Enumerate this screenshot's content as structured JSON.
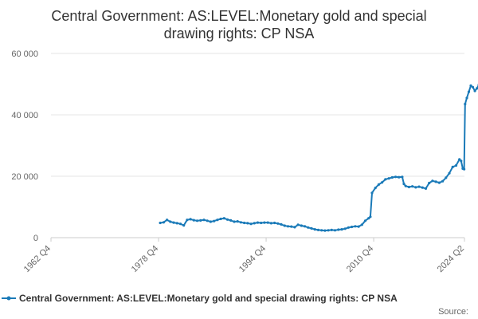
{
  "chart_data": {
    "type": "line",
    "title_line1": "Central Government: AS:LEVEL:Monetary gold and special",
    "title_line2": "drawing rights: CP NSA",
    "ylim": [
      0,
      60000
    ],
    "yticks": [
      {
        "value": 0,
        "label": "0"
      },
      {
        "value": 20000,
        "label": "20 000"
      },
      {
        "value": 40000,
        "label": "40 000"
      },
      {
        "value": 60000,
        "label": "60 000"
      }
    ],
    "xlim": [
      1962.75,
      2024.25
    ],
    "xticks": [
      {
        "value": 1962.75,
        "label": "1962 Q4"
      },
      {
        "value": 1978.75,
        "label": "1978 Q4"
      },
      {
        "value": 1994.75,
        "label": "1994 Q4"
      },
      {
        "value": 2010.75,
        "label": "2010 Q4"
      },
      {
        "value": 2024.25,
        "label": "2024 Q2"
      }
    ],
    "series": [
      {
        "name": "Central Government: AS:LEVEL:Monetary gold and special drawing rights: CP NSA",
        "color": "#1a7ab8",
        "points": [
          [
            1979.0,
            4800
          ],
          [
            1979.5,
            5000
          ],
          [
            1980.0,
            5800
          ],
          [
            1980.5,
            5200
          ],
          [
            1981.0,
            4900
          ],
          [
            1981.5,
            4700
          ],
          [
            1982.0,
            4500
          ],
          [
            1982.5,
            4000
          ],
          [
            1983.0,
            5800
          ],
          [
            1983.5,
            6000
          ],
          [
            1984.0,
            5700
          ],
          [
            1984.5,
            5500
          ],
          [
            1985.0,
            5600
          ],
          [
            1985.5,
            5800
          ],
          [
            1986.0,
            5500
          ],
          [
            1986.5,
            5200
          ],
          [
            1987.0,
            5400
          ],
          [
            1987.5,
            5800
          ],
          [
            1988.0,
            6100
          ],
          [
            1988.5,
            6300
          ],
          [
            1989.0,
            5900
          ],
          [
            1989.5,
            5600
          ],
          [
            1990.0,
            5200
          ],
          [
            1990.5,
            5300
          ],
          [
            1991.0,
            5000
          ],
          [
            1991.5,
            4800
          ],
          [
            1992.0,
            4700
          ],
          [
            1992.5,
            4500
          ],
          [
            1993.0,
            4700
          ],
          [
            1993.5,
            4900
          ],
          [
            1994.0,
            4800
          ],
          [
            1994.5,
            4900
          ],
          [
            1995.0,
            4900
          ],
          [
            1995.5,
            4700
          ],
          [
            1996.0,
            4800
          ],
          [
            1996.5,
            4600
          ],
          [
            1997.0,
            4300
          ],
          [
            1997.5,
            3900
          ],
          [
            1998.0,
            3700
          ],
          [
            1998.5,
            3600
          ],
          [
            1999.0,
            3400
          ],
          [
            1999.5,
            4200
          ],
          [
            2000.0,
            3900
          ],
          [
            2000.5,
            3700
          ],
          [
            2001.0,
            3300
          ],
          [
            2001.5,
            3000
          ],
          [
            2002.0,
            2700
          ],
          [
            2002.5,
            2500
          ],
          [
            2003.0,
            2400
          ],
          [
            2003.5,
            2300
          ],
          [
            2004.0,
            2400
          ],
          [
            2004.5,
            2500
          ],
          [
            2005.0,
            2400
          ],
          [
            2005.5,
            2600
          ],
          [
            2006.0,
            2700
          ],
          [
            2006.5,
            2900
          ],
          [
            2007.0,
            3300
          ],
          [
            2007.5,
            3500
          ],
          [
            2008.0,
            3700
          ],
          [
            2008.5,
            3600
          ],
          [
            2009.0,
            4200
          ],
          [
            2009.5,
            5500
          ],
          [
            2010.0,
            6300
          ],
          [
            2010.25,
            6800
          ],
          [
            2010.5,
            14600
          ],
          [
            2011.0,
            16200
          ],
          [
            2011.5,
            17300
          ],
          [
            2012.0,
            18000
          ],
          [
            2012.5,
            19000
          ],
          [
            2013.0,
            19300
          ],
          [
            2013.5,
            19600
          ],
          [
            2014.0,
            19800
          ],
          [
            2014.5,
            19700
          ],
          [
            2015.0,
            19800
          ],
          [
            2015.25,
            17500
          ],
          [
            2015.5,
            16800
          ],
          [
            2016.0,
            16500
          ],
          [
            2016.5,
            16700
          ],
          [
            2017.0,
            16400
          ],
          [
            2017.5,
            16600
          ],
          [
            2018.0,
            16300
          ],
          [
            2018.5,
            16000
          ],
          [
            2019.0,
            17800
          ],
          [
            2019.5,
            18500
          ],
          [
            2020.0,
            18200
          ],
          [
            2020.5,
            17900
          ],
          [
            2021.0,
            18400
          ],
          [
            2021.5,
            19500
          ],
          [
            2022.0,
            21000
          ],
          [
            2022.5,
            23000
          ],
          [
            2023.0,
            23500
          ],
          [
            2023.5,
            25500
          ],
          [
            2023.75,
            25000
          ],
          [
            2024.0,
            22500
          ],
          [
            2024.2,
            22300
          ],
          [
            2024.35,
            43500
          ],
          [
            2024.6,
            45500
          ],
          [
            2024.9,
            47500
          ],
          [
            2025.2,
            49500
          ],
          [
            2025.5,
            49000
          ],
          [
            2025.8,
            47800
          ],
          [
            2026.1,
            48600
          ],
          [
            2026.4,
            49800
          ],
          [
            2026.7,
            50500
          ]
        ]
      }
    ],
    "legend_label": "Central Government: AS:LEVEL:Monetary gold and special drawing rights: CP NSA",
    "source_label": "Source:",
    "grid": true
  }
}
